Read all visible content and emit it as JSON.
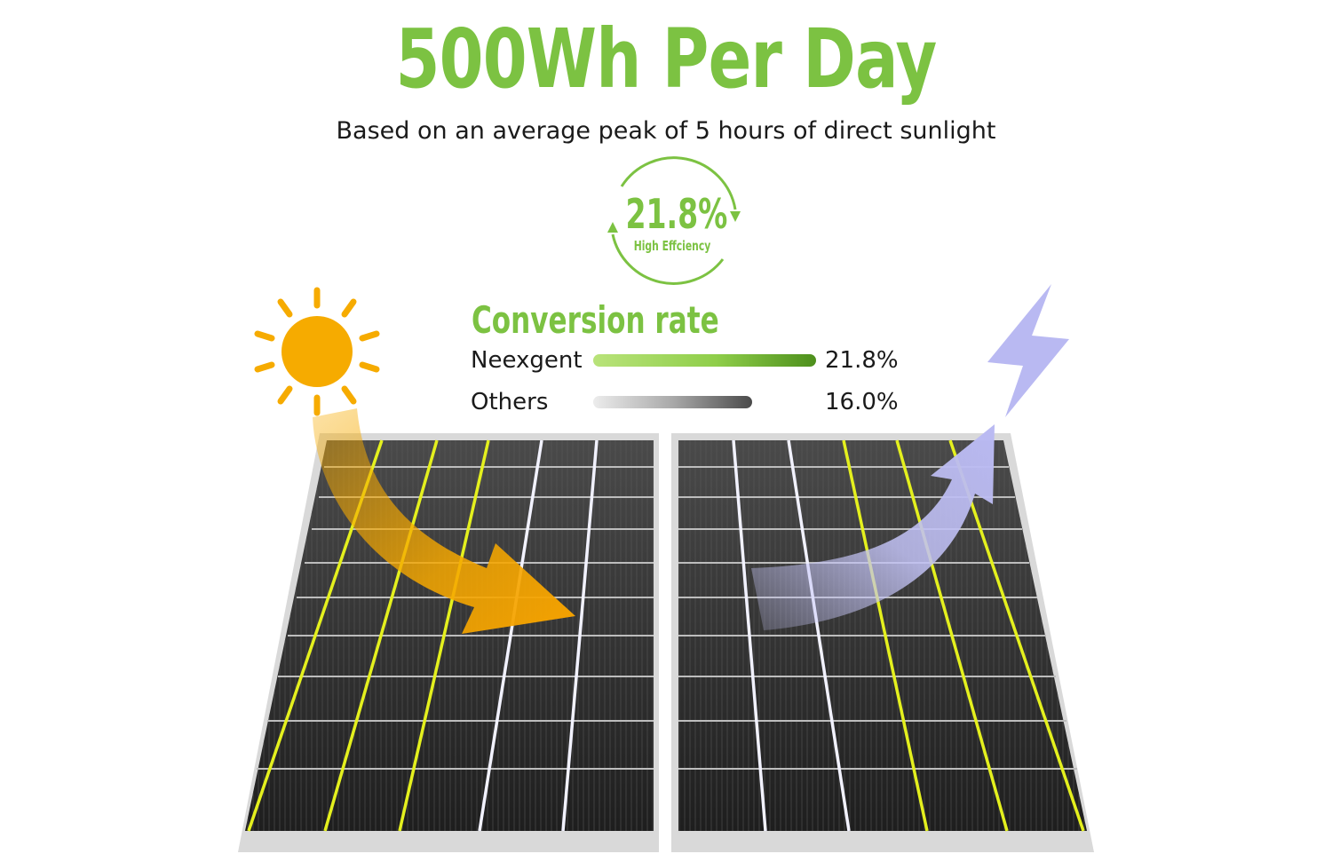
{
  "headline": "500Wh Per Day",
  "subtitle": "Based on an average peak of 5 hours of direct sunlight",
  "badge": {
    "value": "21.8%",
    "label": "High Effciency"
  },
  "conversion": {
    "title": "Conversion rate",
    "rows": [
      {
        "name": "Neexgent",
        "value": "21.8%",
        "fraction": 0.218
      },
      {
        "name": "Others",
        "value": "16.0%",
        "fraction": 0.16
      }
    ]
  },
  "colors": {
    "accent_green": "#7cc242",
    "sun": "#f6ab00",
    "lightning": "#b9b9f2",
    "current_yellow": "#e4f01e",
    "panel_cell": "#2d2d2d"
  },
  "icons": [
    "sun-icon",
    "lightning-icon",
    "refresh-arrows-icon",
    "sunlight-arrow",
    "energy-arrow"
  ]
}
